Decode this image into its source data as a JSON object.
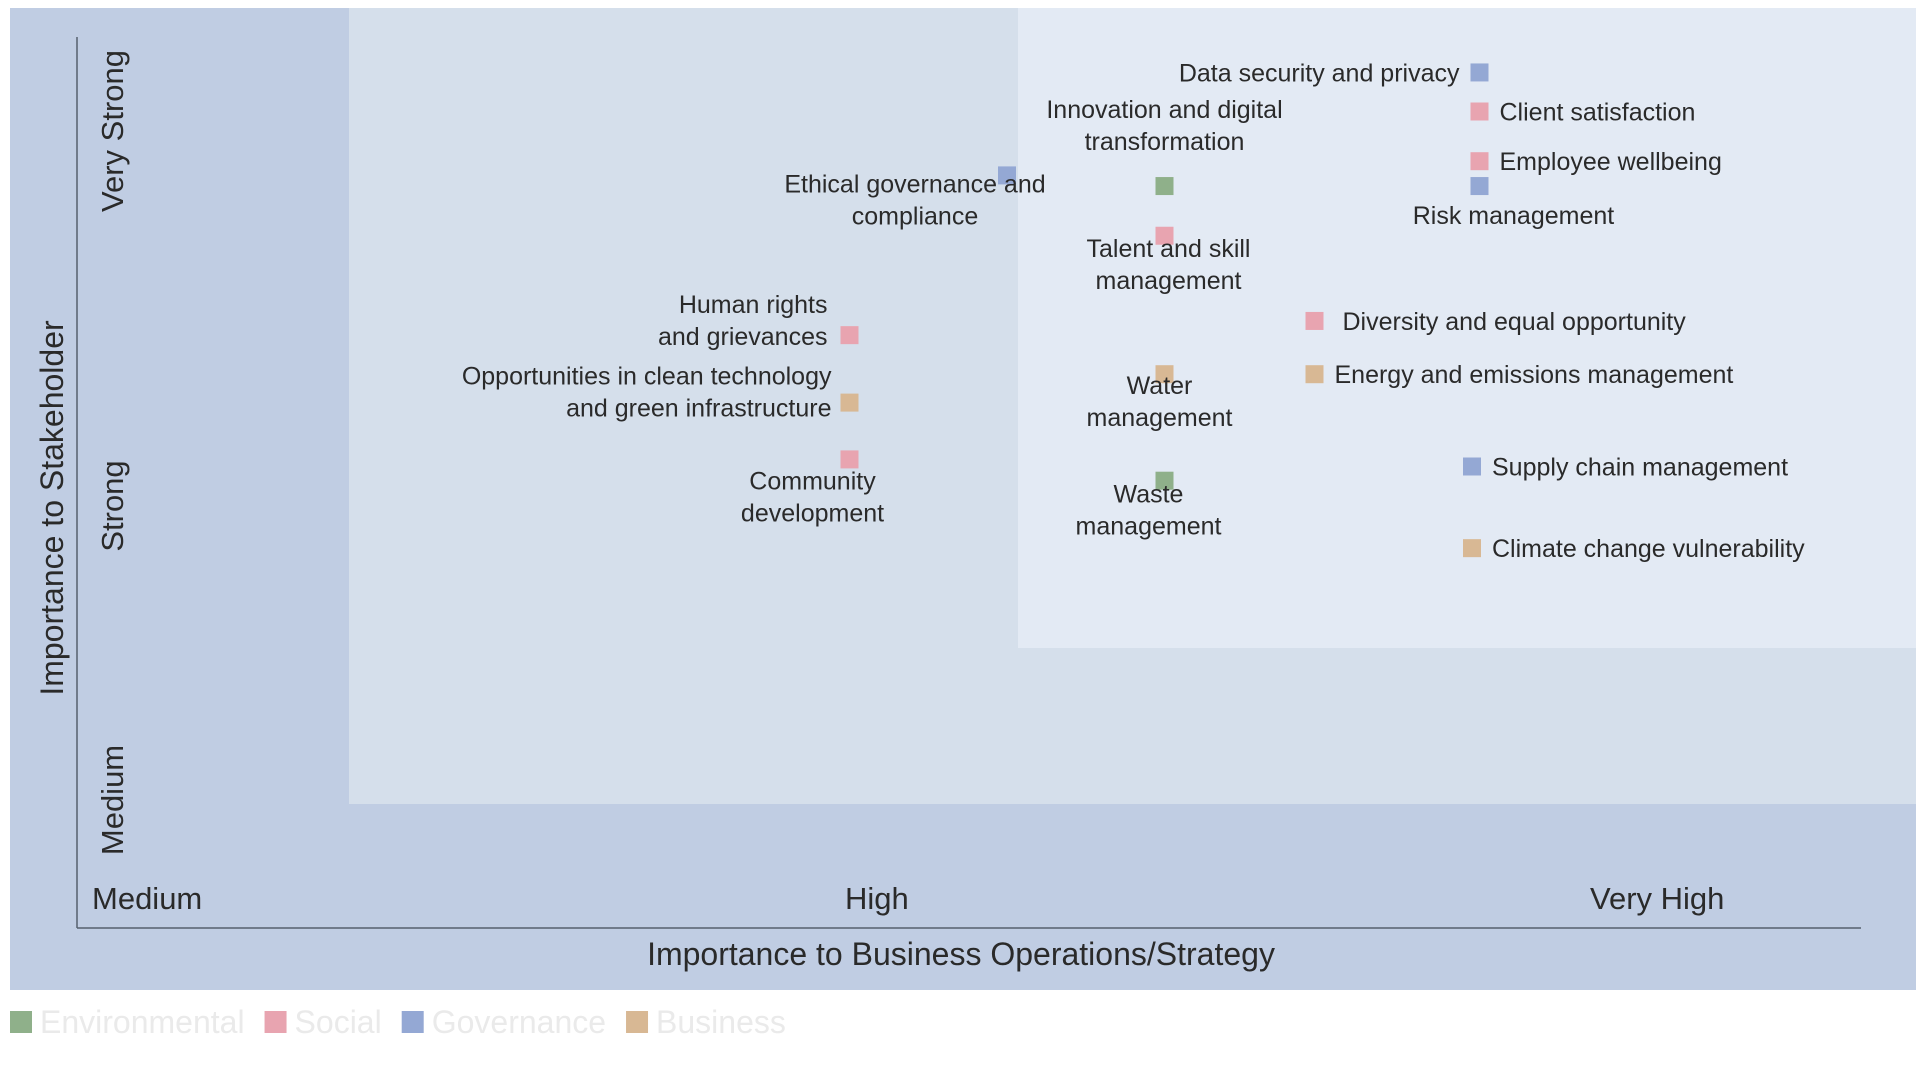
{
  "chart_data": {
    "type": "scatter",
    "title": "",
    "xlabel": "Importance to Business Operations/Strategy",
    "ylabel": "Importance to Stakeholder",
    "x_ticks": [
      "Medium",
      "High",
      "Very High"
    ],
    "y_ticks": [
      "Medium",
      "Strong",
      "Very Strong"
    ],
    "xlim": [
      0,
      2.5
    ],
    "ylim": [
      0,
      2.5
    ],
    "colors": {
      "Environmental": "#8fb08a",
      "Social": "#e8a4b0",
      "Governance": "#94a8d4",
      "Business": "#d8b894",
      "background_outer": "#c0cde3",
      "background_mid": "#d5dfeb",
      "background_inner": "#e3eaf4"
    },
    "legend": [
      "Environmental",
      "Social",
      "Governance",
      "Business"
    ],
    "legend_position": "bottom-left",
    "points": [
      {
        "label": "Data security and privacy",
        "category": "Governance",
        "x": 1.87,
        "y": 2.41
      },
      {
        "label": "Client satisfaction",
        "category": "Social",
        "x": 1.87,
        "y": 2.3
      },
      {
        "label": "Employee wellbeing",
        "category": "Social",
        "x": 1.87,
        "y": 2.16
      },
      {
        "label": "Risk management",
        "category": "Governance",
        "x": 1.87,
        "y": 2.09
      },
      {
        "label": "Innovation and digital transformation",
        "category": "Environmental",
        "x": 1.45,
        "y": 2.09
      },
      {
        "label": "Ethical governance and compliance",
        "category": "Governance",
        "x": 1.24,
        "y": 2.12
      },
      {
        "label": "Talent and skill management",
        "category": "Social",
        "x": 1.45,
        "y": 1.95
      },
      {
        "label": "Diversity and equal opportunity",
        "category": "Social",
        "x": 1.65,
        "y": 1.71
      },
      {
        "label": "Human rights and grievances",
        "category": "Social",
        "x": 1.03,
        "y": 1.67
      },
      {
        "label": "Water management",
        "category": "Business",
        "x": 1.45,
        "y": 1.56
      },
      {
        "label": "Energy and emissions management",
        "category": "Business",
        "x": 1.65,
        "y": 1.56
      },
      {
        "label": "Opportunities in clean technology and green infrastructure",
        "category": "Business",
        "x": 1.03,
        "y": 1.48
      },
      {
        "label": "Community development",
        "category": "Social",
        "x": 1.03,
        "y": 1.32
      },
      {
        "label": "Supply chain management",
        "category": "Governance",
        "x": 1.86,
        "y": 1.3
      },
      {
        "label": "Waste management",
        "category": "Environmental",
        "x": 1.45,
        "y": 1.26
      },
      {
        "label": "Climate change vulnerability",
        "category": "Business",
        "x": 1.86,
        "y": 1.07
      }
    ]
  }
}
